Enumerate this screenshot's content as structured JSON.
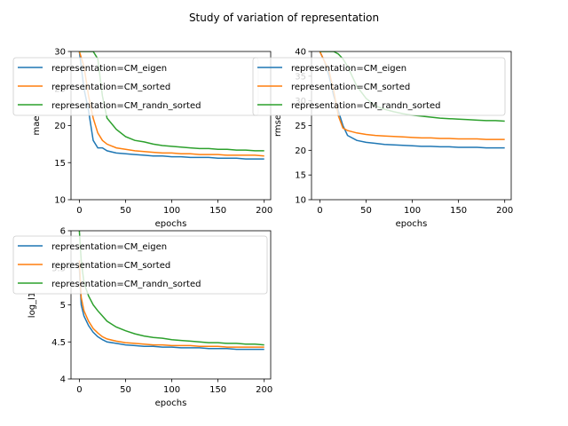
{
  "figure": {
    "title": "Study of variation of representation"
  },
  "chart_data": [
    {
      "type": "line",
      "ylabel": "mae",
      "xlabel": "epochs",
      "xlim": [
        -9,
        207
      ],
      "ylim": [
        10,
        30
      ],
      "xticks": [
        0,
        50,
        100,
        150,
        200
      ],
      "yticks": [
        10,
        15,
        20,
        25,
        30
      ],
      "grid": false,
      "legend_position": "top-center",
      "series": [
        {
          "name": "representation=CM_eigen",
          "color": "#1f77b4",
          "x": [
            0,
            5,
            10,
            15,
            20,
            25,
            30,
            40,
            50,
            60,
            70,
            80,
            90,
            100,
            110,
            120,
            130,
            140,
            150,
            160,
            170,
            180,
            190,
            200
          ],
          "y": [
            30,
            25,
            22,
            18,
            17,
            17,
            16.6,
            16.3,
            16.2,
            16.1,
            16.0,
            15.9,
            15.9,
            15.8,
            15.8,
            15.7,
            15.7,
            15.7,
            15.6,
            15.6,
            15.6,
            15.5,
            15.5,
            15.5
          ]
        },
        {
          "name": "representation=CM_sorted",
          "color": "#ff7f0e",
          "x": [
            0,
            5,
            10,
            15,
            20,
            25,
            30,
            40,
            50,
            60,
            70,
            80,
            90,
            100,
            110,
            120,
            130,
            140,
            150,
            160,
            170,
            180,
            190,
            200
          ],
          "y": [
            30,
            28,
            24,
            21,
            19,
            18,
            17.5,
            17.0,
            16.8,
            16.6,
            16.5,
            16.4,
            16.3,
            16.3,
            16.2,
            16.2,
            16.1,
            16.1,
            16.1,
            16.0,
            16.0,
            16.0,
            16.0,
            15.9
          ]
        },
        {
          "name": "representation=CM_randn_sorted",
          "color": "#2ca02c",
          "x": [
            0,
            5,
            10,
            15,
            20,
            25,
            30,
            40,
            50,
            60,
            70,
            80,
            90,
            100,
            110,
            120,
            130,
            140,
            150,
            160,
            170,
            180,
            190,
            200
          ],
          "y": [
            30,
            30,
            30,
            30,
            29,
            24,
            21,
            19.5,
            18.5,
            18.0,
            17.8,
            17.5,
            17.3,
            17.2,
            17.1,
            17.0,
            16.9,
            16.9,
            16.8,
            16.8,
            16.7,
            16.7,
            16.6,
            16.6
          ]
        }
      ]
    },
    {
      "type": "line",
      "ylabel": "rmse",
      "xlabel": "epochs",
      "xlim": [
        -9,
        207
      ],
      "ylim": [
        10,
        40
      ],
      "xticks": [
        0,
        50,
        100,
        150,
        200
      ],
      "yticks": [
        10,
        15,
        20,
        25,
        30,
        35,
        40
      ],
      "grid": false,
      "legend_position": "top-center",
      "series": [
        {
          "name": "representation=CM_eigen",
          "color": "#1f77b4",
          "x": [
            0,
            5,
            10,
            15,
            20,
            25,
            30,
            40,
            50,
            60,
            70,
            80,
            90,
            100,
            110,
            120,
            130,
            140,
            150,
            160,
            170,
            180,
            190,
            200
          ],
          "y": [
            40,
            38,
            35,
            31,
            28,
            25,
            23,
            22.0,
            21.6,
            21.4,
            21.2,
            21.1,
            21.0,
            20.9,
            20.8,
            20.8,
            20.7,
            20.7,
            20.6,
            20.6,
            20.6,
            20.5,
            20.5,
            20.5
          ]
        },
        {
          "name": "representation=CM_sorted",
          "color": "#ff7f0e",
          "x": [
            0,
            5,
            10,
            15,
            20,
            25,
            30,
            40,
            50,
            60,
            70,
            80,
            90,
            100,
            110,
            120,
            130,
            140,
            150,
            160,
            170,
            180,
            190,
            200
          ],
          "y": [
            40,
            38,
            36,
            32,
            27,
            24.5,
            24,
            23.5,
            23.2,
            23.0,
            22.9,
            22.8,
            22.7,
            22.6,
            22.5,
            22.5,
            22.4,
            22.4,
            22.3,
            22.3,
            22.3,
            22.2,
            22.2,
            22.2
          ]
        },
        {
          "name": "representation=CM_randn_sorted",
          "color": "#2ca02c",
          "x": [
            0,
            5,
            10,
            15,
            20,
            25,
            30,
            40,
            50,
            60,
            70,
            80,
            90,
            100,
            110,
            120,
            130,
            140,
            150,
            160,
            170,
            180,
            190,
            200
          ],
          "y": [
            40,
            40,
            40,
            40,
            39.5,
            38.5,
            37,
            33,
            30.5,
            29.0,
            28.3,
            27.8,
            27.4,
            27.1,
            26.9,
            26.7,
            26.5,
            26.4,
            26.3,
            26.2,
            26.1,
            26.0,
            26.0,
            25.9
          ]
        }
      ]
    },
    {
      "type": "line",
      "ylabel": "log_l1",
      "xlabel": "epochs",
      "xlim": [
        -9,
        207
      ],
      "ylim": [
        4.0,
        6.0
      ],
      "xticks": [
        0,
        50,
        100,
        150,
        200
      ],
      "yticks": [
        4.0,
        4.5,
        5.0,
        5.5,
        6.0
      ],
      "grid": false,
      "legend_position": "top-center",
      "series": [
        {
          "name": "representation=CM_eigen",
          "color": "#1f77b4",
          "x": [
            0,
            2,
            5,
            10,
            15,
            20,
            25,
            30,
            40,
            50,
            60,
            70,
            80,
            90,
            100,
            110,
            120,
            130,
            140,
            150,
            160,
            170,
            180,
            190,
            200
          ],
          "y": [
            5.5,
            5.0,
            4.85,
            4.72,
            4.63,
            4.57,
            4.53,
            4.5,
            4.48,
            4.46,
            4.45,
            4.44,
            4.44,
            4.43,
            4.43,
            4.42,
            4.42,
            4.42,
            4.41,
            4.41,
            4.41,
            4.4,
            4.4,
            4.4,
            4.4
          ]
        },
        {
          "name": "representation=CM_sorted",
          "color": "#ff7f0e",
          "x": [
            0,
            2,
            5,
            10,
            15,
            20,
            25,
            30,
            40,
            50,
            60,
            70,
            80,
            90,
            100,
            110,
            120,
            130,
            140,
            150,
            160,
            170,
            180,
            190,
            200
          ],
          "y": [
            5.6,
            5.1,
            4.92,
            4.78,
            4.68,
            4.62,
            4.57,
            4.54,
            4.51,
            4.49,
            4.48,
            4.47,
            4.46,
            4.46,
            4.45,
            4.45,
            4.45,
            4.44,
            4.44,
            4.44,
            4.43,
            4.43,
            4.43,
            4.43,
            4.43
          ]
        },
        {
          "name": "representation=CM_randn_sorted",
          "color": "#2ca02c",
          "x": [
            0,
            2,
            5,
            10,
            15,
            20,
            25,
            30,
            40,
            50,
            60,
            70,
            80,
            90,
            100,
            110,
            120,
            130,
            140,
            150,
            160,
            170,
            180,
            190,
            200
          ],
          "y": [
            6.0,
            5.6,
            5.3,
            5.12,
            5.0,
            4.92,
            4.85,
            4.78,
            4.7,
            4.65,
            4.61,
            4.58,
            4.56,
            4.55,
            4.53,
            4.52,
            4.51,
            4.5,
            4.49,
            4.49,
            4.48,
            4.48,
            4.47,
            4.47,
            4.46
          ]
        }
      ]
    }
  ]
}
